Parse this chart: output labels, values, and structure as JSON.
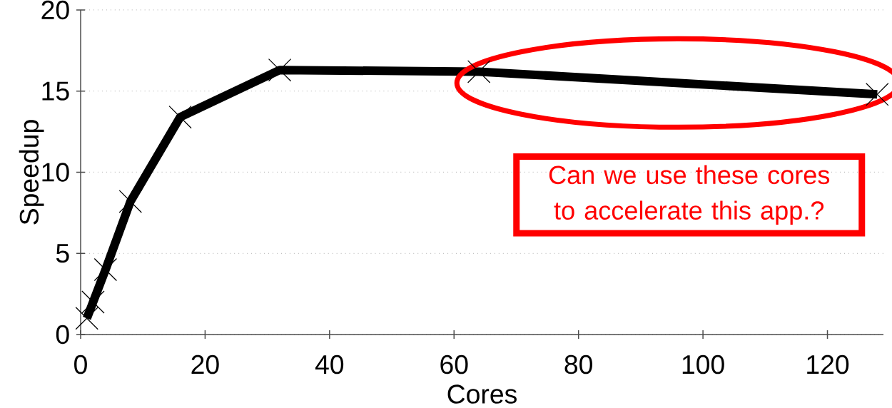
{
  "chart_data": {
    "type": "line",
    "xlabel": "Cores",
    "ylabel": "Speedup",
    "x": [
      1,
      2,
      4,
      8,
      16,
      32,
      64,
      128
    ],
    "series": [
      {
        "color": "#000000",
        "values": [
          1,
          2,
          4,
          8.2,
          13.4,
          16.3,
          16.2,
          14.8
        ]
      }
    ],
    "xlim": [
      0,
      129
    ],
    "ylim": [
      0,
      20
    ],
    "xticks": [
      0,
      20,
      40,
      60,
      80,
      100,
      120
    ],
    "yticks": [
      0,
      5,
      10,
      15,
      20
    ],
    "grid": "y",
    "marker": "cross",
    "line_style": "solid",
    "annotations": [
      "Can we use these cores to accelerate this app.?"
    ]
  }
}
